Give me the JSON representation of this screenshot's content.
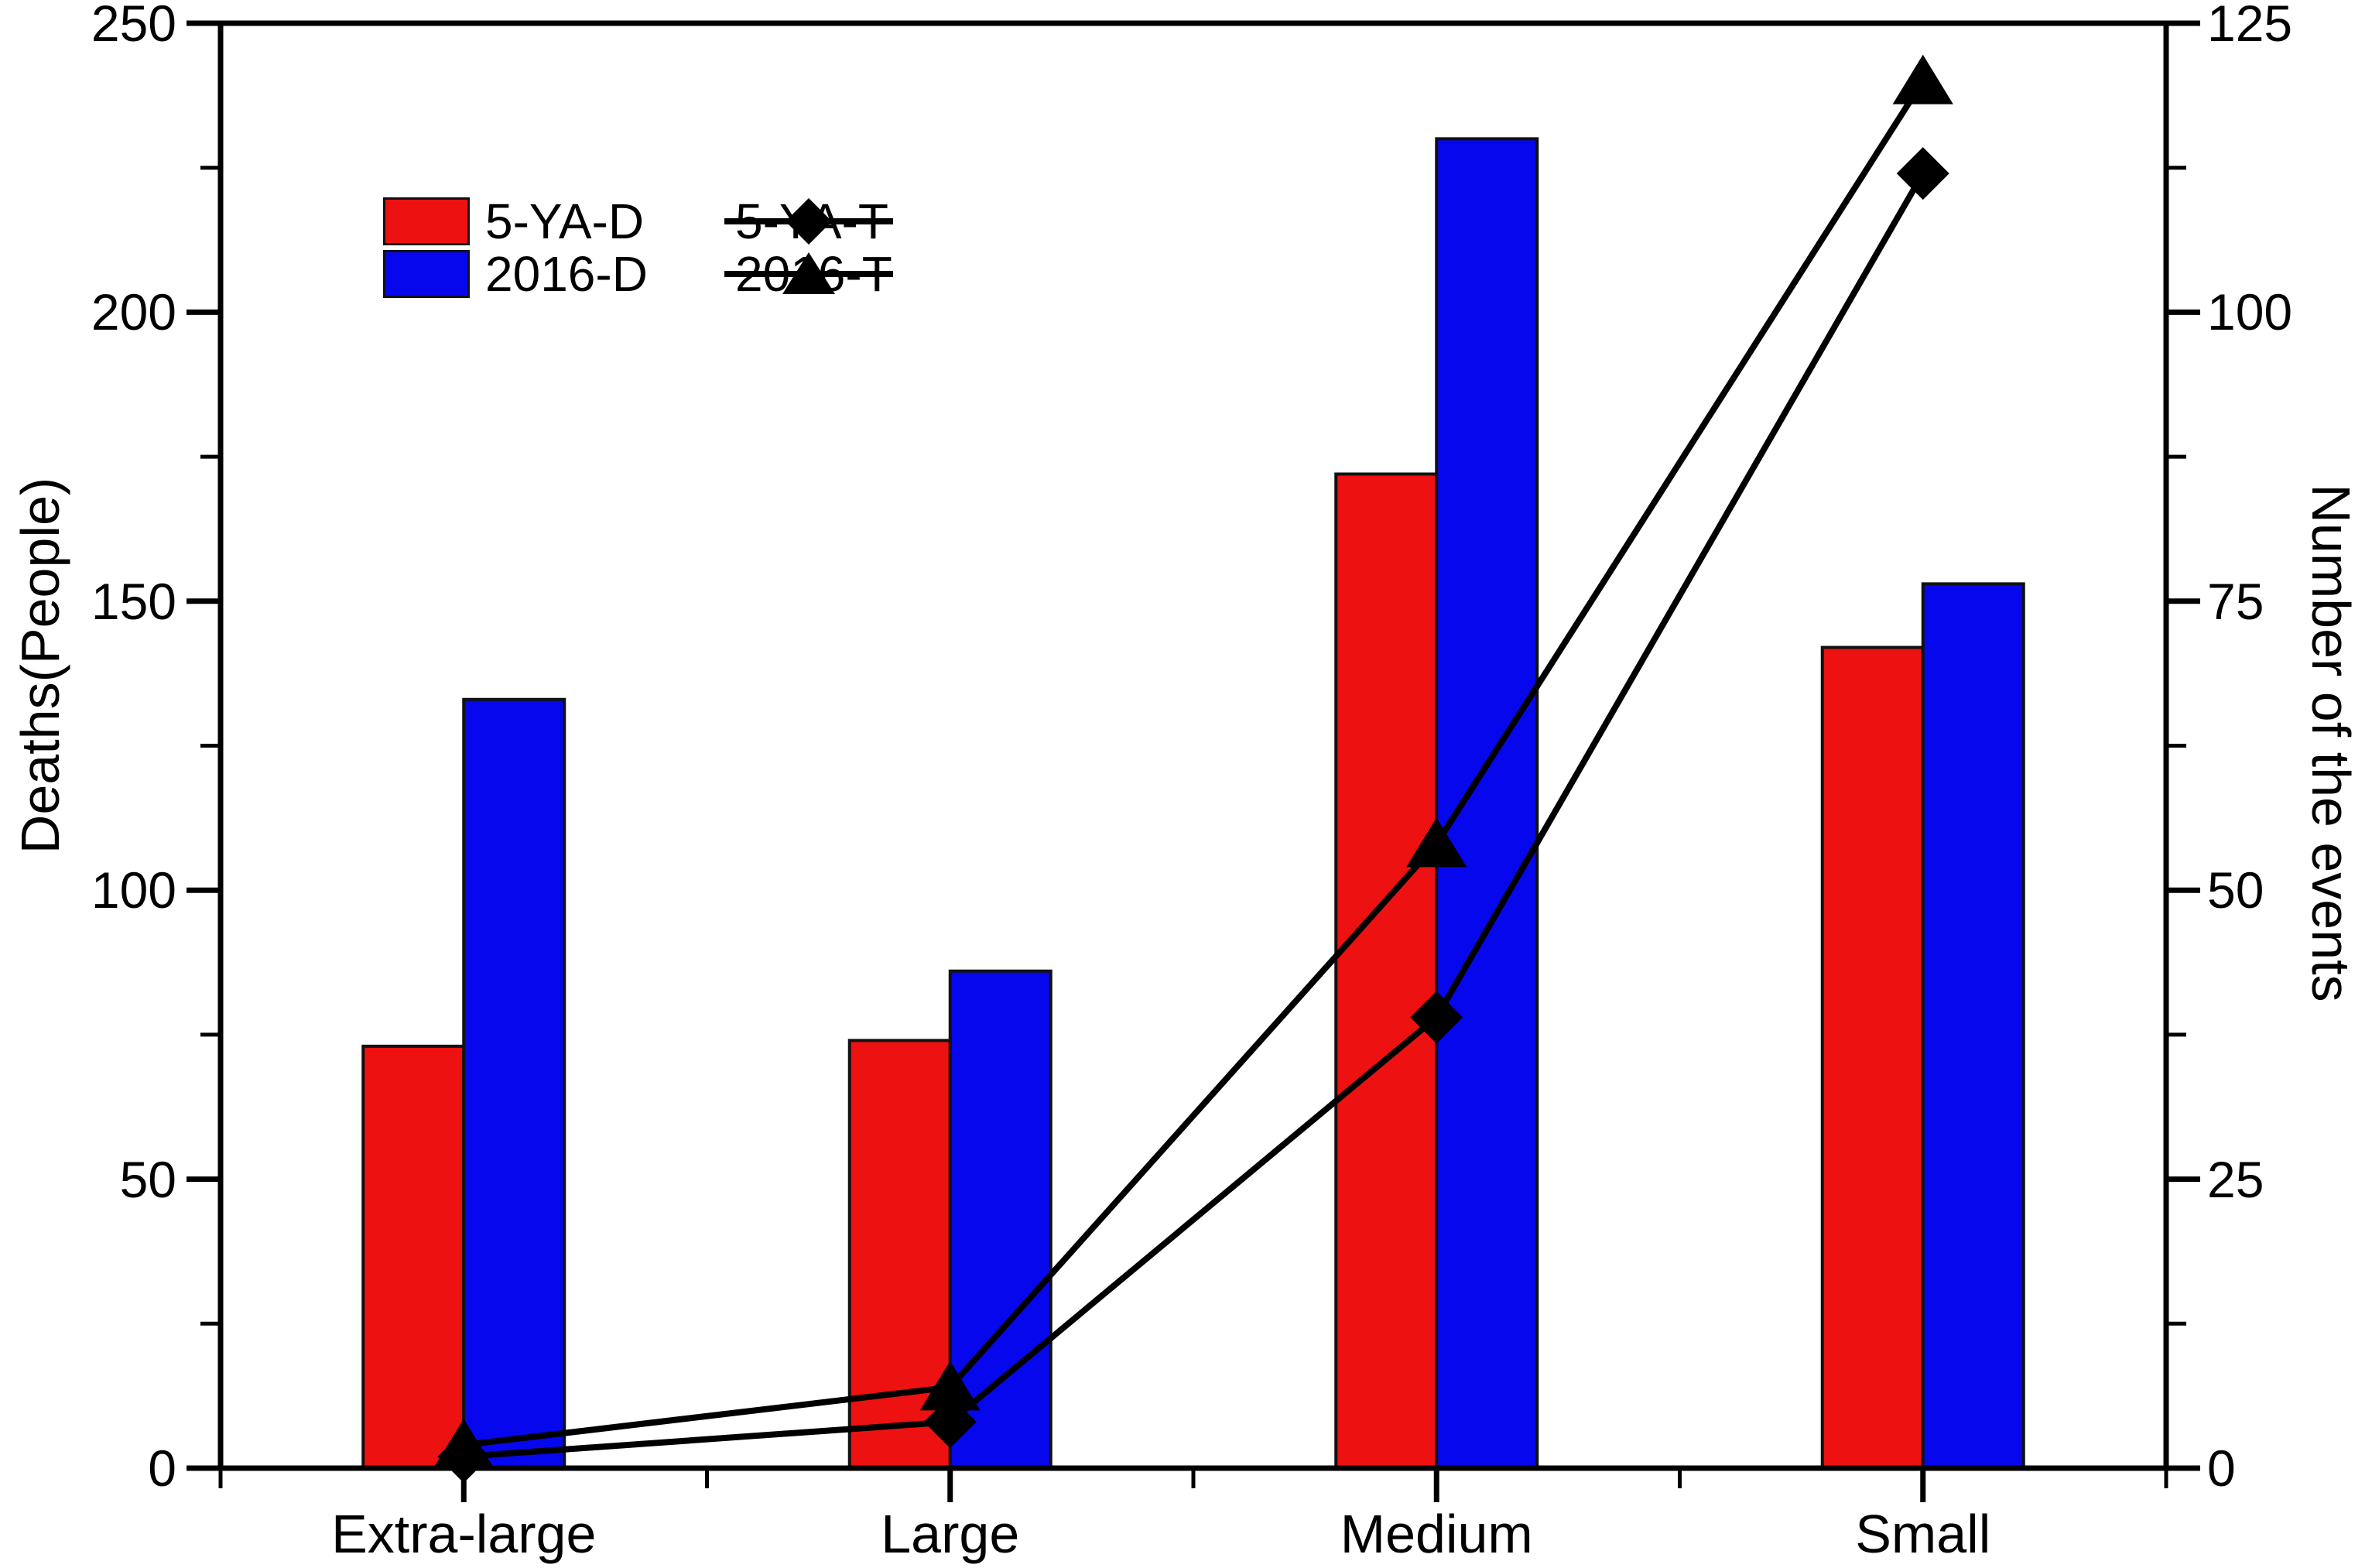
{
  "chart_data": {
    "type": "combo-grouped-bar-and-line",
    "categories": [
      "Extra-large",
      "Large",
      "Medium",
      "Small"
    ],
    "bar_series": [
      {
        "name": "5-YA-D",
        "axis": "left",
        "color": "#ee1111",
        "values": [
          73,
          74,
          172,
          142
        ]
      },
      {
        "name": "2016-D",
        "axis": "left",
        "color": "#0707ee",
        "values": [
          133,
          86,
          230,
          153
        ]
      }
    ],
    "line_series": [
      {
        "name": "5-YA-T",
        "axis": "right",
        "marker": "diamond",
        "color": "#000000",
        "values": [
          1,
          4,
          39,
          112
        ]
      },
      {
        "name": "2016-T",
        "axis": "right",
        "marker": "triangle",
        "color": "#000000",
        "values": [
          2,
          7,
          54,
          120
        ]
      }
    ],
    "left_axis": {
      "label": "Deaths(People)",
      "min": 0,
      "max": 250,
      "major_step": 50,
      "minor_step": 25,
      "tick_labels": [
        "0",
        "50",
        "100",
        "150",
        "200",
        "250"
      ]
    },
    "right_axis": {
      "label": "Number of the events",
      "min": 0,
      "max": 125,
      "major_step": 25,
      "minor_step": 12.5,
      "tick_labels": [
        "0",
        "25",
        "50",
        "75",
        "100",
        "125"
      ]
    },
    "x_axis": {
      "minor_ticks_at_midpoints": true
    },
    "legend": {
      "entries": [
        {
          "label": "5-YA-D",
          "type": "swatch",
          "color": "#ee1111"
        },
        {
          "label": "2016-D",
          "type": "swatch",
          "color": "#0707ee"
        },
        {
          "label": "5-YA-T",
          "type": "line-marker",
          "marker": "diamond"
        },
        {
          "label": "2016-T",
          "type": "line-marker",
          "marker": "triangle"
        }
      ]
    },
    "frame_color": "#000000",
    "background_color": "#ffffff",
    "grid": false,
    "legend_position": "inside-top-left"
  }
}
